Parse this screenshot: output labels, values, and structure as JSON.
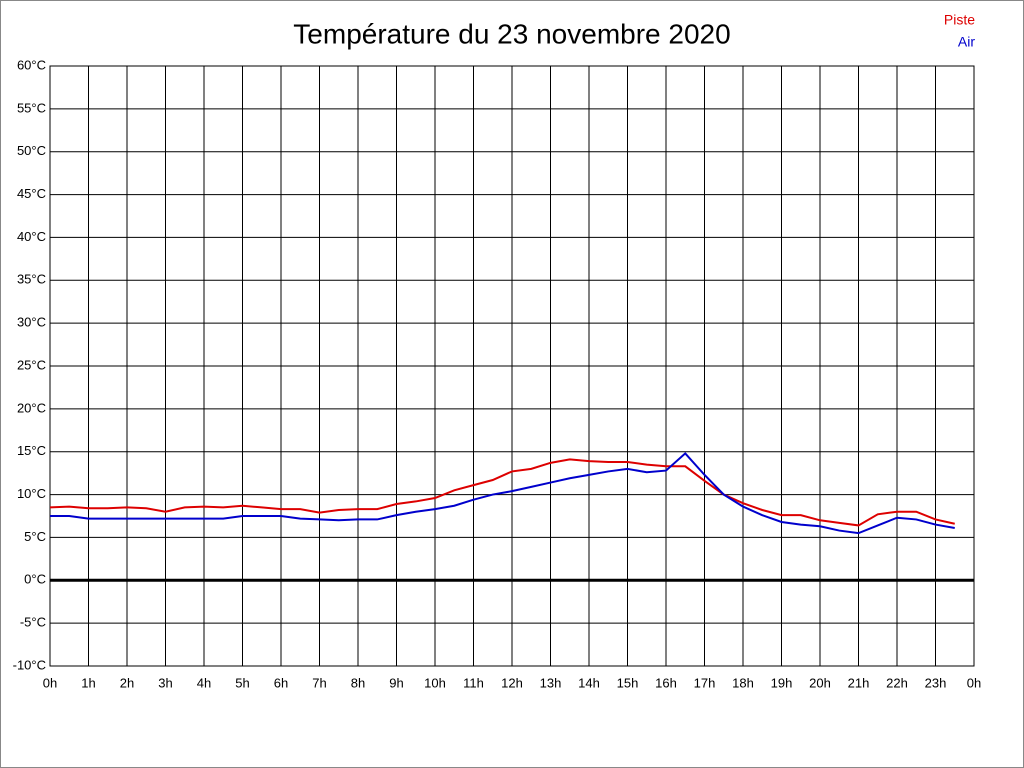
{
  "chart_data": {
    "type": "line",
    "title": "Température du 23 novembre 2020",
    "x": [
      0,
      0.5,
      1,
      1.5,
      2,
      2.5,
      3,
      3.5,
      4,
      4.5,
      5,
      5.5,
      6,
      6.5,
      7,
      7.5,
      8,
      8.5,
      9,
      9.5,
      10,
      10.5,
      11,
      11.5,
      12,
      12.5,
      13,
      13.5,
      14,
      14.5,
      15,
      15.5,
      16,
      16.5,
      17,
      17.5,
      18,
      18.5,
      19,
      19.5,
      20,
      20.5,
      21,
      21.5,
      22,
      22.5,
      23,
      23.5
    ],
    "series": [
      {
        "name": "Piste",
        "color": "#dd0000",
        "values": [
          8.5,
          8.6,
          8.4,
          8.4,
          8.5,
          8.4,
          8.0,
          8.5,
          8.6,
          8.5,
          8.7,
          8.5,
          8.3,
          8.3,
          7.9,
          8.2,
          8.3,
          8.3,
          8.9,
          9.2,
          9.6,
          10.5,
          11.1,
          11.7,
          12.7,
          13.0,
          13.7,
          14.1,
          13.9,
          13.8,
          13.8,
          13.5,
          13.3,
          13.3,
          11.6,
          10.0,
          9.0,
          8.2,
          7.6,
          7.6,
          7.0,
          6.7,
          6.4,
          7.7,
          8.0,
          8.0,
          7.1,
          6.6
        ]
      },
      {
        "name": "Air",
        "color": "#0000cc",
        "values": [
          7.5,
          7.5,
          7.2,
          7.2,
          7.2,
          7.2,
          7.2,
          7.2,
          7.2,
          7.2,
          7.5,
          7.5,
          7.5,
          7.2,
          7.1,
          7.0,
          7.1,
          7.1,
          7.6,
          8.0,
          8.3,
          8.7,
          9.4,
          10.0,
          10.4,
          10.9,
          11.4,
          11.9,
          12.3,
          12.7,
          13.0,
          12.6,
          12.8,
          14.8,
          12.3,
          10.0,
          8.6,
          7.6,
          6.8,
          6.5,
          6.3,
          5.8,
          5.5,
          6.4,
          7.3,
          7.1,
          6.5,
          6.1
        ]
      }
    ],
    "xlim": [
      0,
      24
    ],
    "xticks": [
      {
        "value": 0,
        "label": "0h"
      },
      {
        "value": 1,
        "label": "1h"
      },
      {
        "value": 2,
        "label": "2h"
      },
      {
        "value": 3,
        "label": "3h"
      },
      {
        "value": 4,
        "label": "4h"
      },
      {
        "value": 5,
        "label": "5h"
      },
      {
        "value": 6,
        "label": "6h"
      },
      {
        "value": 7,
        "label": "7h"
      },
      {
        "value": 8,
        "label": "8h"
      },
      {
        "value": 9,
        "label": "9h"
      },
      {
        "value": 10,
        "label": "10h"
      },
      {
        "value": 11,
        "label": "11h"
      },
      {
        "value": 12,
        "label": "12h"
      },
      {
        "value": 13,
        "label": "13h"
      },
      {
        "value": 14,
        "label": "14h"
      },
      {
        "value": 15,
        "label": "15h"
      },
      {
        "value": 16,
        "label": "16h"
      },
      {
        "value": 17,
        "label": "17h"
      },
      {
        "value": 18,
        "label": "18h"
      },
      {
        "value": 19,
        "label": "19h"
      },
      {
        "value": 20,
        "label": "20h"
      },
      {
        "value": 21,
        "label": "21h"
      },
      {
        "value": 22,
        "label": "22h"
      },
      {
        "value": 23,
        "label": "23h"
      },
      {
        "value": 24,
        "label": "0h"
      }
    ],
    "ylim": [
      -10,
      60
    ],
    "yticks": [
      {
        "value": -10,
        "label": "-10°C"
      },
      {
        "value": -5,
        "label": "-5°C"
      },
      {
        "value": 0,
        "label": "0°C"
      },
      {
        "value": 5,
        "label": "5°C"
      },
      {
        "value": 10,
        "label": "10°C"
      },
      {
        "value": 15,
        "label": "15°C"
      },
      {
        "value": 20,
        "label": "20°C"
      },
      {
        "value": 25,
        "label": "25°C"
      },
      {
        "value": 30,
        "label": "30°C"
      },
      {
        "value": 35,
        "label": "35°C"
      },
      {
        "value": 40,
        "label": "40°C"
      },
      {
        "value": 45,
        "label": "45°C"
      },
      {
        "value": 50,
        "label": "50°C"
      },
      {
        "value": 55,
        "label": "55°C"
      },
      {
        "value": 60,
        "label": "60°C"
      }
    ],
    "grid": true,
    "legend": "top-right"
  }
}
